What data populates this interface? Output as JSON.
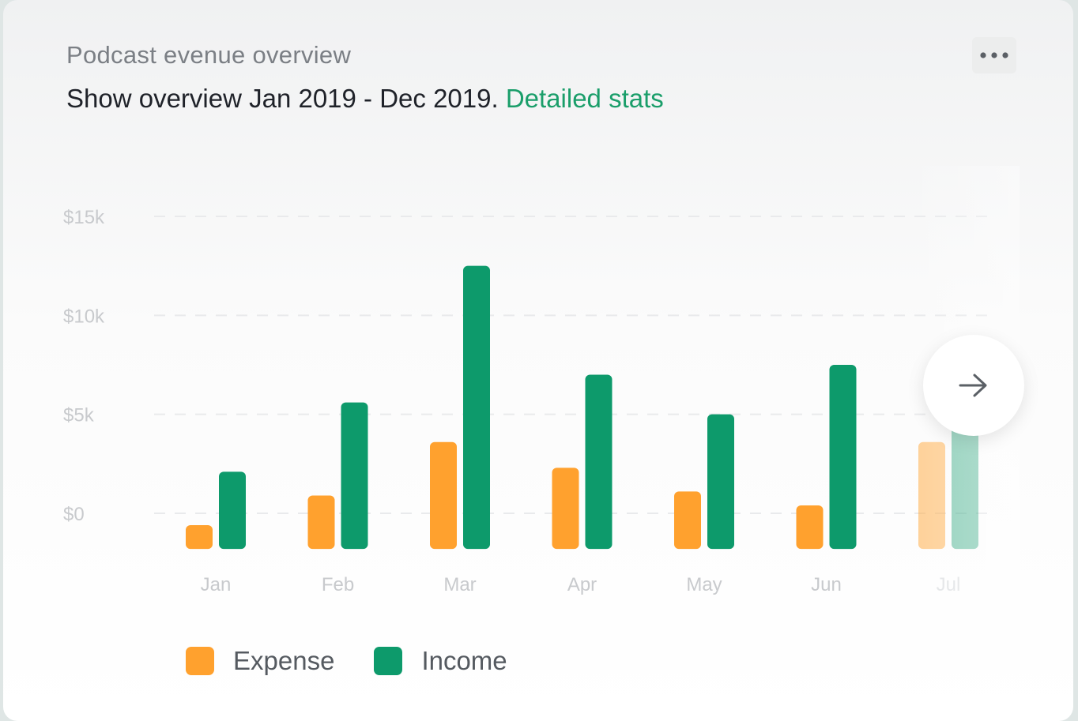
{
  "card": {
    "subtitle": "Podcast evenue overview",
    "headline_text": "Show overview Jan 2019 - Dec 2019.",
    "link_text": "Detailed stats",
    "more_icon": "more-horizontal-icon",
    "next_icon": "arrow-right-icon"
  },
  "colors": {
    "expense": "#ffa12e",
    "income": "#0d9a6b",
    "link": "#1a9e6a"
  },
  "chart_data": {
    "type": "bar",
    "title": "",
    "xlabel": "",
    "ylabel": "",
    "categories": [
      "Jan",
      "Feb",
      "Mar",
      "Apr",
      "May",
      "Jun",
      "Jul"
    ],
    "series": [
      {
        "name": "Expense",
        "values": [
          -600,
          900,
          3600,
          2300,
          1100,
          400,
          3600
        ]
      },
      {
        "name": "Income",
        "values": [
          2100,
          5600,
          12500,
          7000,
          5000,
          7500,
          5500
        ]
      }
    ],
    "yticks": [
      "$0",
      "$5k",
      "$10k",
      "$15k"
    ],
    "ytick_values": [
      0,
      5000,
      10000,
      15000
    ],
    "ylim": [
      -1800,
      15000
    ],
    "grid": true,
    "legend": "bottom-left"
  },
  "legend": [
    {
      "label": "Expense"
    },
    {
      "label": "Income"
    }
  ]
}
